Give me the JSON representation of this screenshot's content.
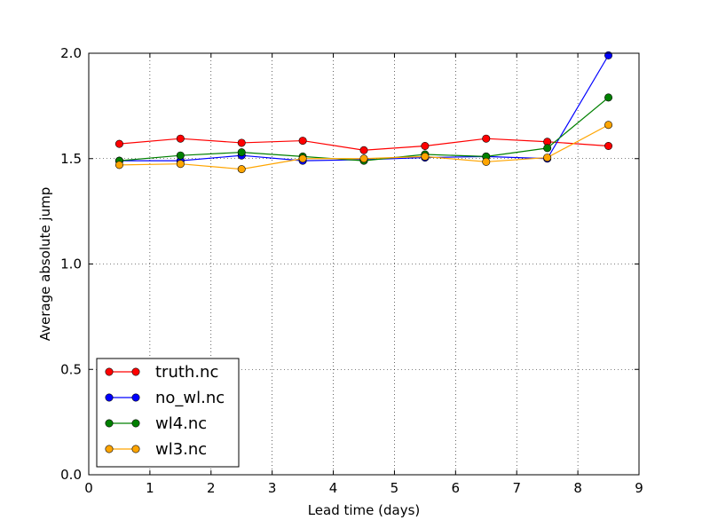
{
  "chart_data": {
    "type": "line",
    "title": "",
    "xlabel": "Lead time (days)",
    "ylabel": "Average absolute jump",
    "xlim": [
      0,
      9
    ],
    "ylim": [
      0.0,
      2.0
    ],
    "xticks": [
      "0",
      "1",
      "2",
      "3",
      "4",
      "5",
      "6",
      "7",
      "8",
      "9"
    ],
    "yticks": [
      "0.0",
      "0.5",
      "1.0",
      "1.5",
      "2.0"
    ],
    "grid": true,
    "legend_position": "lower-left",
    "x": [
      0.5,
      1.5,
      2.5,
      3.5,
      4.5,
      5.5,
      6.5,
      7.5,
      8.5
    ],
    "series": [
      {
        "name": "truth.nc",
        "color": "#ff0000",
        "values": [
          1.57,
          1.595,
          1.575,
          1.585,
          1.54,
          1.56,
          1.595,
          1.58,
          1.56
        ]
      },
      {
        "name": "no_wl.nc",
        "color": "#0000ff",
        "values": [
          1.49,
          1.49,
          1.515,
          1.49,
          1.495,
          1.505,
          1.51,
          1.5,
          1.99
        ]
      },
      {
        "name": "wl4.nc",
        "color": "#008000",
        "values": [
          1.49,
          1.515,
          1.53,
          1.51,
          1.49,
          1.52,
          1.51,
          1.55,
          1.79
        ]
      },
      {
        "name": "wl3.nc",
        "color": "#ffa500",
        "values": [
          1.47,
          1.475,
          1.45,
          1.5,
          1.5,
          1.51,
          1.485,
          1.505,
          1.66
        ]
      }
    ]
  }
}
